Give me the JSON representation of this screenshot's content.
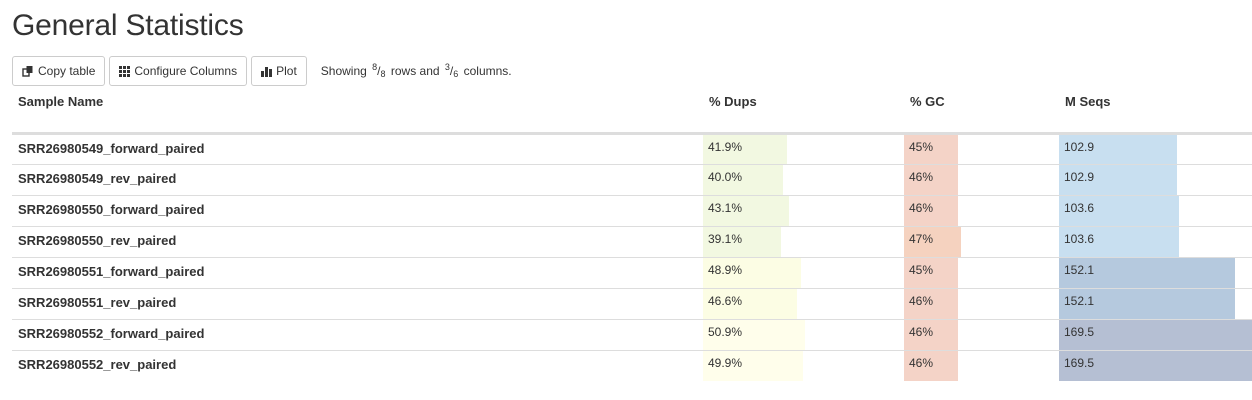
{
  "title": "General Statistics",
  "toolbar": {
    "copy_label": "Copy table",
    "configure_label": "Configure Columns",
    "plot_label": "Plot",
    "showing_prefix": "Showing ",
    "rows_shown": "8",
    "rows_total": "8",
    "rows_suffix": " rows and ",
    "cols_shown": "3",
    "cols_total": "6",
    "cols_suffix": " columns."
  },
  "columns": {
    "sample": "Sample Name",
    "dups": "% Dups",
    "gc": "% GC",
    "mseqs": "M Seqs"
  },
  "rows": [
    {
      "name": "SRR26980549_forward_paired",
      "dups": "41.9%",
      "gc": "45%",
      "mseqs": "102.9"
    },
    {
      "name": "SRR26980549_rev_paired",
      "dups": "40.0%",
      "gc": "46%",
      "mseqs": "102.9"
    },
    {
      "name": "SRR26980550_forward_paired",
      "dups": "43.1%",
      "gc": "46%",
      "mseqs": "103.6"
    },
    {
      "name": "SRR26980550_rev_paired",
      "dups": "39.1%",
      "gc": "47%",
      "mseqs": "103.6"
    },
    {
      "name": "SRR26980551_forward_paired",
      "dups": "48.9%",
      "gc": "45%",
      "mseqs": "152.1"
    },
    {
      "name": "SRR26980551_rev_paired",
      "dups": "46.6%",
      "gc": "46%",
      "mseqs": "152.1"
    },
    {
      "name": "SRR26980552_forward_paired",
      "dups": "50.9%",
      "gc": "46%",
      "mseqs": "169.5"
    },
    {
      "name": "SRR26980552_rev_paired",
      "dups": "49.9%",
      "gc": "46%",
      "mseqs": "169.5"
    }
  ],
  "bar_fractions": {
    "dups": [
      0.42,
      0.4,
      0.43,
      0.39,
      0.49,
      0.466,
      0.509,
      0.499
    ],
    "gc": [
      0.35,
      0.35,
      0.35,
      0.37,
      0.35,
      0.35,
      0.35,
      0.35
    ],
    "mseqs": [
      0.61,
      0.61,
      0.62,
      0.62,
      0.91,
      0.91,
      1.0,
      1.0
    ]
  },
  "colors": {
    "dups": [
      "#f2f8e1",
      "#f2f8e1",
      "#f2f8e1",
      "#f2f8e1",
      "#fcfde4",
      "#fcfde4",
      "#fffeeb",
      "#fffeeb"
    ],
    "gc": [
      "#f4d3c7",
      "#f4d3c7",
      "#f4d3c7",
      "#f5d2bf",
      "#f4d3c7",
      "#f4d3c7",
      "#f4d3c7",
      "#f4d3c7"
    ],
    "mseqs": [
      "#c8dff0",
      "#c8dff0",
      "#c8dff0",
      "#c8dff0",
      "#b5c9de",
      "#b5c9de",
      "#b5bfd3",
      "#b5bfd3"
    ]
  }
}
